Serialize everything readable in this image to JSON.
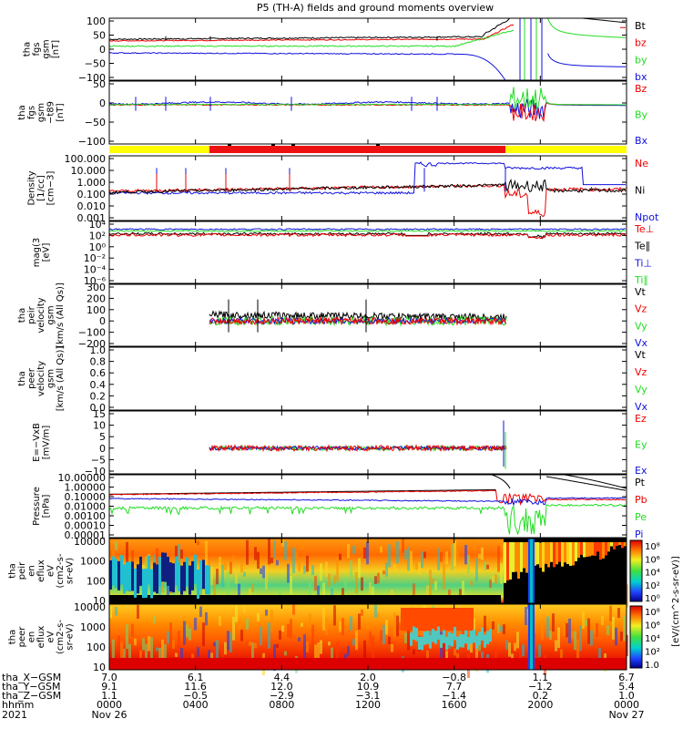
{
  "title": "P5 (TH-A) fields and ground moments overview",
  "colors": {
    "black": "#000000",
    "red": "#ee0000",
    "green": "#22dd22",
    "blue": "#1010dd",
    "yellow": "#ffff00"
  },
  "chart_data": [
    {
      "type": "line",
      "ylabel": [
        "tha",
        "fgs",
        "gsm",
        "[nT]"
      ],
      "yticks": [
        "100",
        "50",
        "0",
        "−50",
        "−100"
      ],
      "ylim": [
        -100,
        100
      ],
      "series": [
        {
          "name": "Bt",
          "color": "#000000"
        },
        {
          "name": "bz",
          "color": "#ee0000"
        },
        {
          "name": "by",
          "color": "#22dd22"
        },
        {
          "name": "bx",
          "color": "#1010dd"
        }
      ]
    },
    {
      "type": "line",
      "ylabel": [
        "tha",
        "fgs",
        "gsm",
        "−t89",
        "[nT]"
      ],
      "yticks": [
        "50",
        "0",
        "−50",
        "−100"
      ],
      "ylim": [
        -120,
        60
      ],
      "series": [
        {
          "name": "Bz",
          "color": "#ee0000"
        },
        {
          "name": "By",
          "color": "#22dd22"
        },
        {
          "name": "Bx",
          "color": "#1010dd"
        }
      ]
    },
    {
      "type": "line",
      "ylabel": [
        "Density",
        "[1/cc]",
        "[cm−3]"
      ],
      "yticks": [
        "100.000",
        "10.000",
        "1.000",
        "0.100",
        "0.010",
        "0.001"
      ],
      "yscale": "log",
      "series": [
        {
          "name": "Ne",
          "color": "#ee0000"
        },
        {
          "name": "Ni",
          "color": "#000000"
        },
        {
          "name": "Npot",
          "color": "#1010dd"
        }
      ]
    },
    {
      "type": "line",
      "ylabel": [
        "mag(3",
        "[eV]"
      ],
      "yticks": [
        "10⁴",
        "10²",
        "10⁰",
        "10⁻²",
        "10⁻⁴",
        "10⁻⁶"
      ],
      "yscale": "log",
      "series": [
        {
          "name": "Te⊥",
          "color": "#ee0000"
        },
        {
          "name": "Te∥",
          "color": "#000000"
        },
        {
          "name": "Ti⊥",
          "color": "#1010dd"
        },
        {
          "name": "Ti∥",
          "color": "#22dd22"
        }
      ]
    },
    {
      "type": "line",
      "ylabel": [
        "tha",
        "peir",
        "velocity",
        "gsm",
        "[km/s (All Qs)]"
      ],
      "yticks": [
        "300",
        "200",
        "100",
        "0",
        "−100",
        "−200"
      ],
      "ylim": [
        -200,
        300
      ],
      "series": [
        {
          "name": "Vt",
          "color": "#000000"
        },
        {
          "name": "Vz",
          "color": "#ee0000"
        },
        {
          "name": "Vy",
          "color": "#22dd22"
        },
        {
          "name": "Vx",
          "color": "#1010dd"
        }
      ]
    },
    {
      "type": "line",
      "ylabel": [
        "tha",
        "peer",
        "velocity",
        "gsm",
        "[km/s (All Qs)]"
      ],
      "yticks": [
        "1.0",
        "0.8",
        "0.6",
        "0.4",
        "0.2",
        "0.0"
      ],
      "ylim": [
        0,
        1
      ],
      "series": [
        {
          "name": "Vt",
          "color": "#000000"
        },
        {
          "name": "Vz",
          "color": "#ee0000"
        },
        {
          "name": "Vy",
          "color": "#22dd22"
        },
        {
          "name": "Vx",
          "color": "#1010dd"
        }
      ]
    },
    {
      "type": "line",
      "ylabel": [
        "E=−VxB",
        "[mV/m]"
      ],
      "yticks": [
        "15",
        "10",
        "5",
        "0",
        "−5",
        "−10"
      ],
      "ylim": [
        -10,
        15
      ],
      "series": [
        {
          "name": "Ez",
          "color": "#ee0000"
        },
        {
          "name": "Ey",
          "color": "#22dd22"
        },
        {
          "name": "Ex",
          "color": "#1010dd"
        }
      ]
    },
    {
      "type": "line",
      "ylabel": [
        "Pressure",
        "[nPa]"
      ],
      "yticks": [
        "10.00000",
        "1.00000",
        "0.10000",
        "0.01000",
        "0.00100",
        "0.00010",
        "0.00001"
      ],
      "yscale": "log",
      "series": [
        {
          "name": "Pt",
          "color": "#000000"
        },
        {
          "name": "Pb",
          "color": "#ee0000"
        },
        {
          "name": "Pe",
          "color": "#22dd22"
        },
        {
          "name": "Pi",
          "color": "#1010dd"
        }
      ]
    },
    {
      "type": "heatmap",
      "ylabel": [
        "tha",
        "peir",
        "en",
        "eflux",
        "eV",
        "(cm2-s-",
        "sr-eV)"
      ],
      "yticks": [
        "10000",
        "1000",
        "100",
        "10"
      ],
      "yscale": "log",
      "colorbar": {
        "ticks": [
          "10⁸",
          "10⁶",
          "10⁴",
          "10²",
          "10⁰"
        ],
        "label": "[eV/(cm^2-s-sr-eV)]"
      }
    },
    {
      "type": "heatmap",
      "ylabel": [
        "tha",
        "peer",
        "en",
        "eflux",
        "eV",
        "(cm2-s-",
        "sr-eV)"
      ],
      "yticks": [
        "10000",
        "1000",
        "100",
        "10"
      ],
      "yscale": "log",
      "colorbar": {
        "ticks": [
          "10⁸",
          "10⁶",
          "10⁴",
          "10²",
          "1.0"
        ],
        "label": "[eV/(cm^2-s-sr-eV) (All Qs)]"
      }
    }
  ],
  "x_axis": {
    "rows": [
      {
        "label": "tha_X−GSM",
        "values": [
          "7.0",
          "6.1",
          "4.4",
          "2.0",
          "−0.8",
          "1.1",
          "6.7"
        ]
      },
      {
        "label": "tha_Y−GSM",
        "values": [
          "9.1",
          "11.6",
          "12.0",
          "10.9",
          "7.7",
          "−1.2",
          "5.4"
        ]
      },
      {
        "label": "tha_Z−GSM",
        "values": [
          "1.1",
          "−0.5",
          "−2.9",
          "−3.1",
          "−1.4",
          "0.2",
          "1.0"
        ]
      },
      {
        "label": "hhmm",
        "values": [
          "0000",
          "0400",
          "0800",
          "1200",
          "1600",
          "2000",
          "0000"
        ]
      }
    ],
    "year": "2021",
    "dates": [
      "Nov 26",
      "Nov 27"
    ]
  }
}
